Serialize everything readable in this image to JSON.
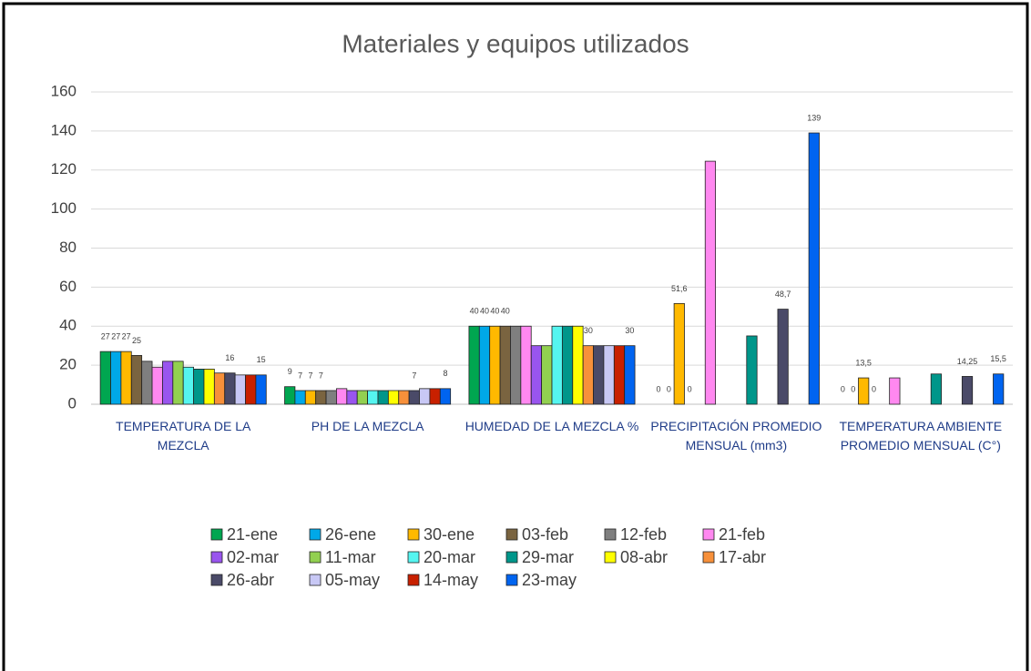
{
  "chart_data": {
    "type": "bar",
    "title": "Materiales y equipos utilizados",
    "categories": [
      "TEMPERATURA  DE LA MEZCLA",
      "PH DE LA MEZCLA",
      "HUMEDAD DE LA MEZCLA %",
      "PRECIPITACIÓN PROMEDIO MENSUAL (mm3)",
      "TEMPERATURA AMBIENTE PROMEDIO MENSUAL (C°)"
    ],
    "ylim": [
      0,
      160
    ],
    "yticks": [
      0,
      20,
      40,
      60,
      80,
      100,
      120,
      140,
      160
    ],
    "grid": true,
    "series": [
      {
        "name": "21-ene",
        "color": "#00a650",
        "values": [
          27,
          9,
          40,
          0,
          0
        ],
        "value_labels": [
          "27",
          "9",
          "40",
          "0",
          "0"
        ]
      },
      {
        "name": "26-ene",
        "color": "#00a8e8",
        "values": [
          27,
          7,
          40,
          0,
          0
        ],
        "value_labels": [
          "27",
          "7",
          "40",
          "0",
          "0"
        ]
      },
      {
        "name": "30-ene",
        "color": "#ffb900",
        "values": [
          27,
          7,
          40,
          51.6,
          13.5
        ],
        "value_labels": [
          "27",
          "7",
          "40",
          "51,6",
          "13,5"
        ]
      },
      {
        "name": "03-feb",
        "color": "#7a6440",
        "values": [
          25,
          7,
          40,
          0,
          0
        ],
        "value_labels": [
          "25",
          "7",
          "40",
          "0",
          "0"
        ]
      },
      {
        "name": "12-feb",
        "color": "#7f7f7f",
        "values": [
          22,
          7,
          40,
          null,
          null
        ],
        "value_labels": [
          null,
          null,
          null,
          null,
          null
        ]
      },
      {
        "name": "21-feb",
        "color": "#ff88f0",
        "values": [
          19,
          8,
          40,
          124.5,
          13.5
        ],
        "value_labels": [
          null,
          null,
          null,
          null,
          null
        ]
      },
      {
        "name": "02-mar",
        "color": "#9955ee",
        "values": [
          22,
          7,
          30,
          null,
          null
        ],
        "value_labels": [
          null,
          null,
          null,
          null,
          null
        ]
      },
      {
        "name": "11-mar",
        "color": "#92d050",
        "values": [
          22,
          7,
          30,
          null,
          null
        ],
        "value_labels": [
          null,
          null,
          null,
          null,
          null
        ]
      },
      {
        "name": "20-mar",
        "color": "#55f5f0",
        "values": [
          19,
          7,
          40,
          null,
          null
        ],
        "value_labels": [
          null,
          null,
          null,
          null,
          null
        ]
      },
      {
        "name": "29-mar",
        "color": "#00968a",
        "values": [
          18,
          7,
          40,
          35,
          15.5
        ],
        "value_labels": [
          null,
          null,
          null,
          null,
          null
        ]
      },
      {
        "name": "08-abr",
        "color": "#ffff00",
        "values": [
          18,
          7,
          40,
          null,
          null
        ],
        "value_labels": [
          null,
          null,
          null,
          null,
          null
        ]
      },
      {
        "name": "17-abr",
        "color": "#f7903a",
        "values": [
          16,
          7,
          30,
          null,
          null
        ],
        "value_labels": [
          null,
          null,
          "30",
          null,
          null
        ]
      },
      {
        "name": "26-abr",
        "color": "#4a4a68",
        "values": [
          16,
          7,
          30,
          48.7,
          14.25
        ],
        "value_labels": [
          "16",
          "7",
          null,
          "48,7",
          "14,25"
        ]
      },
      {
        "name": "05-may",
        "color": "#c8c8f5",
        "values": [
          15,
          8,
          30,
          null,
          null
        ],
        "value_labels": [
          null,
          null,
          null,
          null,
          null
        ]
      },
      {
        "name": "14-may",
        "color": "#c82000",
        "values": [
          15,
          8,
          30,
          null,
          null
        ],
        "value_labels": [
          null,
          null,
          null,
          null,
          null
        ]
      },
      {
        "name": "23-may",
        "color": "#0064f0",
        "values": [
          15,
          8,
          30,
          139,
          15.5
        ],
        "value_labels": [
          "15",
          "8",
          "30",
          "139",
          "15,5"
        ]
      }
    ]
  }
}
